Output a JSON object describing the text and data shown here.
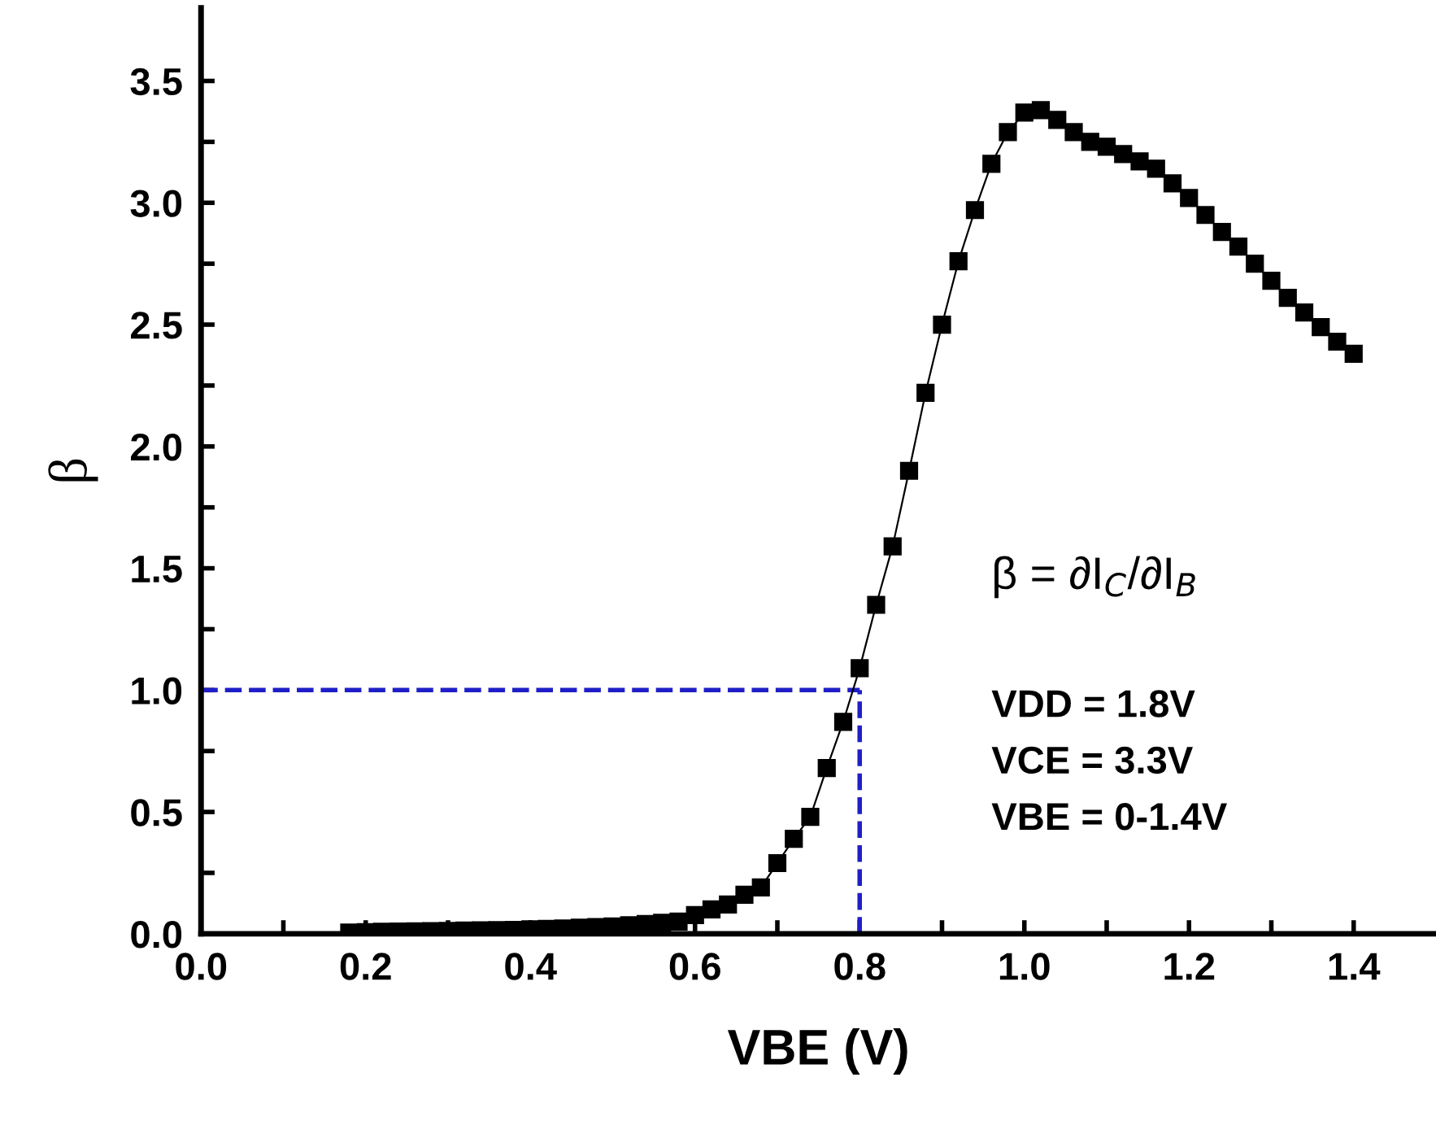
{
  "chart_data": {
    "type": "line",
    "xlabel": "VBE (V)",
    "ylabel": "β",
    "marker": "square",
    "line_style": "solid",
    "grid": false,
    "legend": false,
    "x": [
      0.18,
      0.2,
      0.22,
      0.24,
      0.26,
      0.28,
      0.3,
      0.32,
      0.34,
      0.36,
      0.38,
      0.4,
      0.42,
      0.44,
      0.46,
      0.48,
      0.5,
      0.52,
      0.54,
      0.56,
      0.58,
      0.6,
      0.62,
      0.64,
      0.66,
      0.68,
      0.7,
      0.72,
      0.74,
      0.76,
      0.78,
      0.8,
      0.82,
      0.84,
      0.86,
      0.88,
      0.9,
      0.92,
      0.94,
      0.96,
      0.98,
      1.0,
      1.02,
      1.04,
      1.06,
      1.08,
      1.1,
      1.12,
      1.14,
      1.16,
      1.18,
      1.2,
      1.22,
      1.24,
      1.26,
      1.28,
      1.3,
      1.32,
      1.34,
      1.36,
      1.38,
      1.4
    ],
    "series": [
      {
        "color": "#000000",
        "values": [
          0.005,
          0.007,
          0.008,
          0.009,
          0.01,
          0.011,
          0.012,
          0.013,
          0.014,
          0.015,
          0.016,
          0.018,
          0.02,
          0.022,
          0.025,
          0.028,
          0.03,
          0.035,
          0.04,
          0.045,
          0.05,
          0.077,
          0.1,
          0.12,
          0.16,
          0.19,
          0.29,
          0.39,
          0.48,
          0.68,
          0.87,
          1.09,
          1.35,
          1.59,
          1.9,
          2.22,
          2.5,
          2.76,
          2.97,
          3.16,
          3.29,
          3.37,
          3.38,
          3.34,
          3.29,
          3.25,
          3.23,
          3.2,
          3.17,
          3.14,
          3.08,
          3.02,
          2.95,
          2.88,
          2.82,
          2.75,
          2.68,
          2.61,
          2.55,
          2.49,
          2.43,
          2.38
        ]
      }
    ],
    "xlim": [
      0,
      1.5
    ],
    "ylim": [
      0,
      3.8
    ],
    "xticks": [
      {
        "value": 0.0,
        "label": "0.0"
      },
      {
        "value": 0.1,
        "label": null
      },
      {
        "value": 0.2,
        "label": "0.2"
      },
      {
        "value": 0.3,
        "label": null
      },
      {
        "value": 0.4,
        "label": "0.4"
      },
      {
        "value": 0.5,
        "label": null
      },
      {
        "value": 0.6,
        "label": "0.6"
      },
      {
        "value": 0.7,
        "label": null
      },
      {
        "value": 0.8,
        "label": "0.8"
      },
      {
        "value": 0.9,
        "label": null
      },
      {
        "value": 1.0,
        "label": "1.0"
      },
      {
        "value": 1.1,
        "label": null
      },
      {
        "value": 1.2,
        "label": "1.2"
      },
      {
        "value": 1.3,
        "label": null
      },
      {
        "value": 1.4,
        "label": "1.4"
      }
    ],
    "yticks": [
      {
        "value": 0.0,
        "label": "0.0"
      },
      {
        "value": 0.25,
        "label": null
      },
      {
        "value": 0.5,
        "label": "0.5"
      },
      {
        "value": 0.75,
        "label": null
      },
      {
        "value": 1.0,
        "label": "1.0"
      },
      {
        "value": 1.25,
        "label": null
      },
      {
        "value": 1.5,
        "label": "1.5"
      },
      {
        "value": 1.75,
        "label": null
      },
      {
        "value": 2.0,
        "label": "2.0"
      },
      {
        "value": 2.25,
        "label": null
      },
      {
        "value": 2.5,
        "label": "2.5"
      },
      {
        "value": 2.75,
        "label": null
      },
      {
        "value": 3.0,
        "label": "3.0"
      },
      {
        "value": 3.25,
        "label": null
      },
      {
        "value": 3.5,
        "label": "3.5"
      }
    ],
    "ref_lines": [
      {
        "axis": "y",
        "value": 1.0,
        "color": "#1f1fc8",
        "line_style": "dashed"
      },
      {
        "axis": "x",
        "value": 0.8,
        "color": "#1f1fc8",
        "line_style": "dashed"
      }
    ],
    "annotations": [
      "β = ∂I$_{C}$/∂I$_{B}$",
      "VDD = 1.8V",
      "VCE = 3.3V",
      "VBE = 0-1.4V"
    ]
  }
}
